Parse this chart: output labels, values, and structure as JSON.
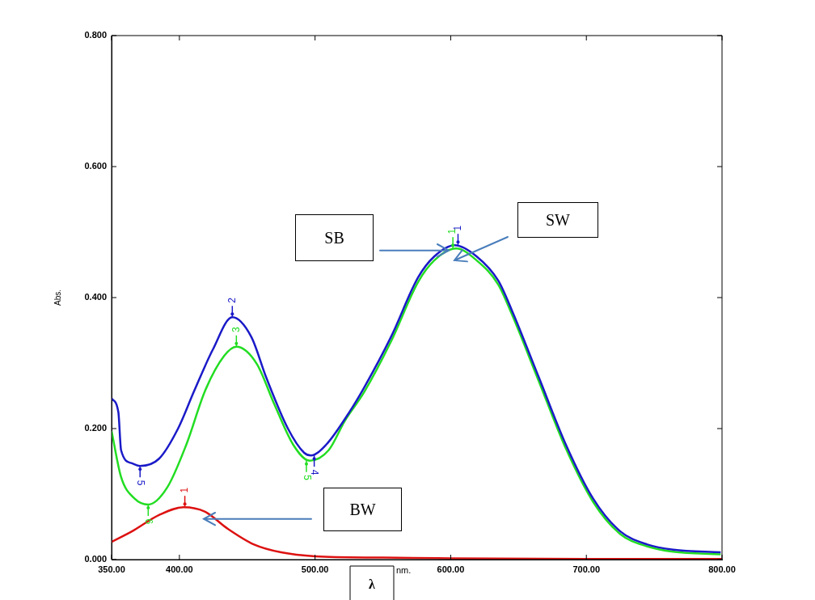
{
  "chart_data": {
    "type": "line",
    "xlabel": "λ",
    "ylabel": "Abs.",
    "xlim": [
      350,
      800
    ],
    "ylim": [
      0,
      0.8
    ],
    "xticks": [
      {
        "value": 350,
        "label": "350.00"
      },
      {
        "value": 400,
        "label": "400.00"
      },
      {
        "value": 500,
        "label": "500.00"
      },
      {
        "value": 600,
        "label": "600.00"
      },
      {
        "value": 700,
        "label": "700.00"
      },
      {
        "value": 800,
        "label": "800.00"
      }
    ],
    "yticks": [
      {
        "value": 0,
        "label": "0.000"
      },
      {
        "value": 0.2,
        "label": "0.200"
      },
      {
        "value": 0.4,
        "label": "0.400"
      },
      {
        "value": 0.6,
        "label": "0.600"
      },
      {
        "value": 0.8,
        "label": "0.800"
      }
    ],
    "grid": false,
    "legend": false,
    "series": [
      {
        "color": "#dd1111",
        "x": [
          350,
          365,
          385,
          403,
          419,
          435,
          455,
          475,
          500,
          550,
          600,
          700,
          800
        ],
        "values": [
          0.027,
          0.043,
          0.068,
          0.08,
          0.073,
          0.048,
          0.023,
          0.011,
          0.005,
          0.003,
          0.002,
          0.001,
          0.001
        ]
      },
      {
        "color": "#1a1ac8",
        "x": [
          350,
          355,
          357,
          365,
          371,
          385,
          399,
          411,
          424.5,
          439,
          453,
          464,
          480,
          492,
          497,
          508,
          524,
          536,
          556,
          576,
          588,
          603,
          619,
          635,
          645,
          665,
          685,
          705,
          725,
          745,
          764,
          799
        ],
        "values": [
          0.246,
          0.225,
          0.167,
          0.147,
          0.143,
          0.154,
          0.2,
          0.258,
          0.32,
          0.37,
          0.34,
          0.278,
          0.2,
          0.163,
          0.159,
          0.175,
          0.221,
          0.262,
          0.34,
          0.431,
          0.463,
          0.48,
          0.463,
          0.426,
          0.381,
          0.278,
          0.175,
          0.093,
          0.043,
          0.023,
          0.015,
          0.011
        ]
      },
      {
        "color": "#22dd22",
        "x": [
          350,
          357,
          367,
          377,
          391,
          405,
          419,
          433,
          442,
          457,
          470,
          484,
          496,
          510,
          522,
          536,
          556,
          576,
          588,
          604,
          619,
          635,
          645,
          665,
          685,
          705,
          725,
          745,
          764,
          799
        ],
        "values": [
          0.196,
          0.126,
          0.093,
          0.084,
          0.11,
          0.175,
          0.258,
          0.311,
          0.325,
          0.299,
          0.237,
          0.175,
          0.151,
          0.167,
          0.212,
          0.255,
          0.333,
          0.424,
          0.457,
          0.475,
          0.457,
          0.42,
          0.375,
          0.272,
          0.169,
          0.088,
          0.039,
          0.02,
          0.012,
          0.008
        ]
      }
    ],
    "annotations": [
      "SB",
      "SW",
      "BW",
      "nm.",
      {
        "text": "1",
        "x": 404,
        "y": 0.08
      },
      {
        "text": "5",
        "x": 371,
        "y": 0.143
      },
      {
        "text": "2",
        "x": 439,
        "y": 0.37
      },
      {
        "text": "4",
        "x": 497,
        "y": 0.159
      },
      {
        "text": "1",
        "x": 603,
        "y": 0.48
      },
      {
        "text": "6",
        "x": 377,
        "y": 0.084
      },
      {
        "text": "3",
        "x": 442,
        "y": 0.325
      },
      {
        "text": "5",
        "x": 496,
        "y": 0.151
      },
      {
        "text": "1",
        "x": 604,
        "y": 0.475
      }
    ]
  }
}
